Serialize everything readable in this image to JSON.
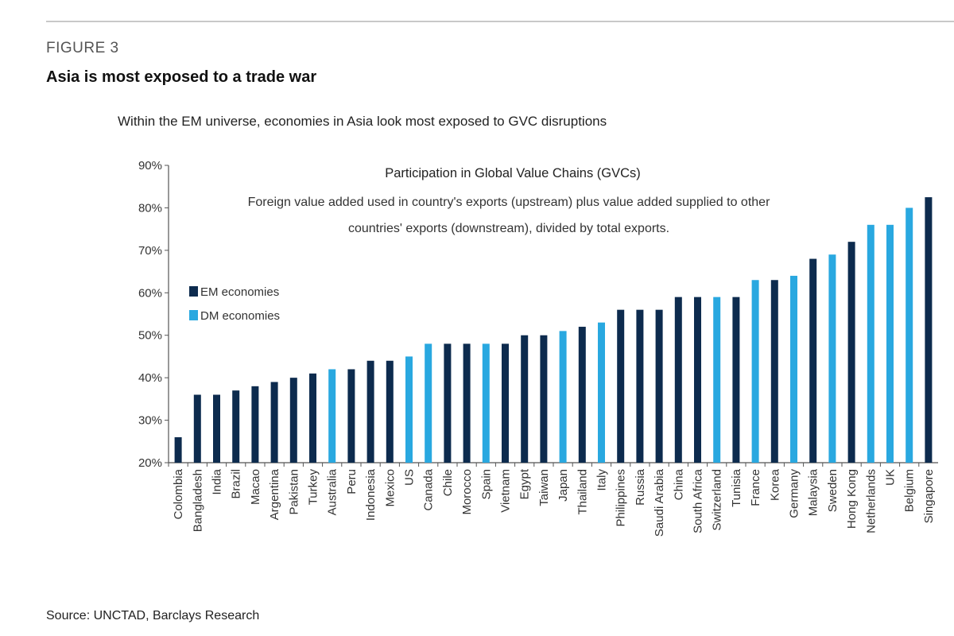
{
  "figure_label": "FIGURE 3",
  "title": "Asia is most exposed to a trade war",
  "subtitle": "Within the EM universe, economies in Asia look most exposed to GVC disruptions",
  "source": "Source: UNCTAD, Barclays Research",
  "chart_data": {
    "type": "bar",
    "title": "Participation in Global Value Chains (GVCs)",
    "subtitle_lines": [
      "Foreign value added used in country's exports (upstream) plus value added supplied to other",
      "countries' exports (downstream),  divided by total exports."
    ],
    "xlabel": "",
    "ylabel": "",
    "ylim": [
      20,
      90
    ],
    "yticks": [
      20,
      30,
      40,
      50,
      60,
      70,
      80,
      90
    ],
    "ytick_format": "%",
    "grid": false,
    "legend_placement": "left",
    "legend": [
      {
        "key": "EM",
        "label": "EM economies",
        "color": "#0d2b4e"
      },
      {
        "key": "DM",
        "label": "DM economies",
        "color": "#29a8e0"
      }
    ],
    "categories": [
      "Colombia",
      "Bangladesh",
      "India",
      "Brazil",
      "Macao",
      "Argentina",
      "Pakistan",
      "Turkey",
      "Australia",
      "Peru",
      "Indonesia",
      "Mexico",
      "US",
      "Canada",
      "Chile",
      "Morocco",
      "Spain",
      "Vietnam",
      "Egypt",
      "Taiwan",
      "Japan",
      "Thailand",
      "Italy",
      "Philippines",
      "Russia",
      "Saudi Arabia",
      "China",
      "South Africa",
      "Switzerland",
      "Tunisia",
      "France",
      "Korea",
      "Germany",
      "Malaysia",
      "Sweden",
      "Hong Kong",
      "Netherlands",
      "UK",
      "Belgium",
      "Singapore"
    ],
    "values": [
      26,
      36,
      36,
      37,
      38,
      39,
      40,
      41,
      42,
      42,
      44,
      44,
      45,
      48,
      48,
      48,
      48,
      48,
      50,
      50,
      51,
      52,
      53,
      56,
      56,
      56,
      59,
      59,
      59,
      59,
      63,
      63,
      64,
      68,
      69,
      72,
      76,
      76,
      80,
      82.5
    ],
    "groups": [
      "EM",
      "EM",
      "EM",
      "EM",
      "EM",
      "EM",
      "EM",
      "EM",
      "DM",
      "EM",
      "EM",
      "EM",
      "DM",
      "DM",
      "EM",
      "EM",
      "DM",
      "EM",
      "EM",
      "EM",
      "DM",
      "EM",
      "DM",
      "EM",
      "EM",
      "EM",
      "EM",
      "EM",
      "DM",
      "EM",
      "DM",
      "EM",
      "DM",
      "EM",
      "DM",
      "EM",
      "DM",
      "DM",
      "DM",
      "EM"
    ]
  }
}
